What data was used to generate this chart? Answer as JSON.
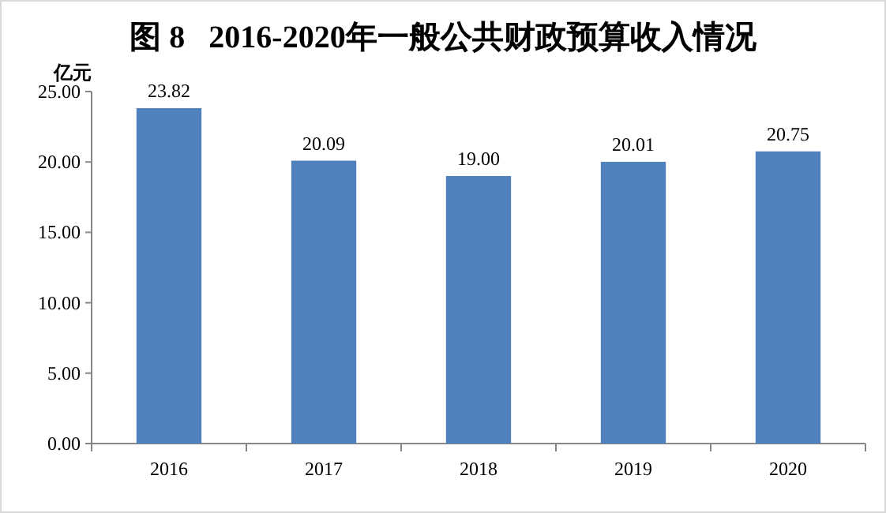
{
  "chart_data": {
    "type": "bar",
    "title": "图 8   2016-2020年一般公共财政预算收入情况",
    "ylabel": "亿元",
    "categories": [
      "2016",
      "2017",
      "2018",
      "2019",
      "2020"
    ],
    "values": [
      23.82,
      20.09,
      19.0,
      20.01,
      20.75
    ],
    "value_labels": [
      "23.82",
      "20.09",
      "19.00",
      "20.01",
      "20.75"
    ],
    "color": "#4f81bd",
    "ylim": [
      0,
      25
    ],
    "yticks": [
      {
        "value": 0,
        "label": "0.00"
      },
      {
        "value": 5,
        "label": "5.00"
      },
      {
        "value": 10,
        "label": "10.00"
      },
      {
        "value": 15,
        "label": "15.00"
      },
      {
        "value": 20,
        "label": "20.00"
      },
      {
        "value": 25,
        "label": "25.00"
      }
    ],
    "grid": false
  }
}
